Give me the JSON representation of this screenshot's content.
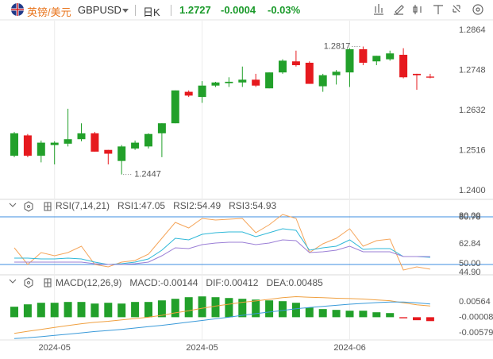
{
  "header": {
    "symbol_cn": "英镑/美元",
    "symbol": "GBPUSD",
    "period": "日K",
    "price": "1.2727",
    "change": "-0.0004",
    "change_pct": "-0.03%"
  },
  "chart_data": [
    {
      "type": "candlestick",
      "up_color": "#22a02a",
      "down_color": "#e6191e",
      "ylim": [
        1.2375,
        1.2894
      ],
      "yticks": [
        1.2864,
        1.2748,
        1.2632,
        1.2516,
        {
          "value": 1.24,
          "label": "1.2400"
        }
      ],
      "open": [
        1.2501,
        1.256,
        1.2501,
        1.2532,
        1.2536,
        1.2549,
        1.2566,
        1.2518,
        1.2486,
        1.2522,
        1.2528,
        1.2566,
        1.2595,
        1.2686,
        1.2671,
        1.2704,
        1.2711,
        1.2713,
        1.2721,
        1.2696,
        1.2742,
        1.2774,
        1.277,
        1.2702,
        1.2734,
        1.2742,
        1.2809,
        1.2774,
        1.278,
        1.2793,
        1.2738,
        1.273
      ],
      "high": [
        1.257,
        1.2564,
        1.2545,
        1.2543,
        1.2637,
        1.2595,
        1.257,
        1.2518,
        1.2532,
        1.2545,
        1.2566,
        1.2595,
        1.269,
        1.269,
        1.2717,
        1.2715,
        1.2728,
        1.2759,
        1.2738,
        1.2742,
        1.278,
        1.2805,
        1.2774,
        1.2738,
        1.2749,
        1.2812,
        1.2817,
        1.279,
        1.2805,
        1.2812,
        1.2738,
        1.2738
      ],
      "low": [
        1.2497,
        1.2497,
        1.2482,
        1.2476,
        1.2528,
        1.2543,
        1.2513,
        1.2476,
        1.2447,
        1.2518,
        1.2522,
        1.2497,
        1.2595,
        1.2671,
        1.2654,
        1.27,
        1.27,
        1.27,
        1.27,
        1.2696,
        1.2738,
        1.2759,
        1.2709,
        1.2686,
        1.2707,
        1.27,
        1.2763,
        1.2763,
        1.2776,
        1.2725,
        1.2692,
        1.2725
      ],
      "close": [
        1.2566,
        1.2501,
        1.2539,
        1.2539,
        1.2549,
        1.2566,
        1.2513,
        1.2507,
        1.2528,
        1.2539,
        1.2564,
        1.2595,
        1.269,
        1.2675,
        1.2704,
        1.2713,
        1.2715,
        1.2721,
        1.2704,
        1.2742,
        1.2776,
        1.2763,
        1.2709,
        1.2734,
        1.2744,
        1.2809,
        1.277,
        1.279,
        1.2797,
        1.2728,
        1.2734,
        1.2727
      ],
      "annotations": [
        {
          "index": 26,
          "value": 1.2817
        },
        {
          "index": 8,
          "value": 1.2447
        }
      ]
    },
    {
      "type": "line",
      "title": "RSI(7,14,21)",
      "ylim": [
        45,
        88.5
      ],
      "yticks": [
        80.78,
        62.84,
        {
          "value": 44.9,
          "label": "44.90"
        }
      ],
      "levels": [
        {
          "value": 80,
          "label": "80.00"
        },
        {
          "value": 50,
          "label": "50.00"
        }
      ],
      "level_color": "#3d8ee0",
      "series": [
        {
          "name": "RSI1:47.05",
          "color": "#f5a55a",
          "values": [
            60.5,
            50,
            57.5,
            55.5,
            57.5,
            61.5,
            50,
            48.5,
            51.5,
            52.5,
            56.5,
            66.5,
            76.5,
            73,
            79,
            78,
            78.5,
            79,
            70,
            75,
            81.5,
            79,
            57.5,
            63,
            66.5,
            72.5,
            61.5,
            65,
            66,
            46.5,
            48.5,
            47.05
          ]
        },
        {
          "name": "RSI2:54.49",
          "color": "#2fb8d8",
          "values": [
            54,
            54,
            53.5,
            53.5,
            54,
            53.5,
            51.5,
            50,
            50.5,
            51.5,
            53.5,
            59,
            66.5,
            65.5,
            69,
            70,
            70.5,
            70.5,
            67.5,
            70,
            72.5,
            71.5,
            59,
            60.5,
            61.5,
            65.5,
            59.5,
            60,
            60,
            55,
            55,
            54.49
          ]
        },
        {
          "name": "RSI3:54.93",
          "color": "#9b7fd6",
          "values": [
            51.5,
            51.5,
            51.5,
            51.5,
            51.5,
            51.5,
            50.5,
            50,
            50,
            50.5,
            51.5,
            55.5,
            60.5,
            60,
            62.5,
            63.5,
            64,
            64,
            62.5,
            63.5,
            65.5,
            65,
            57.5,
            58,
            59,
            61.5,
            58,
            58,
            58,
            55,
            55,
            54.93
          ]
        }
      ]
    },
    {
      "type": "macd",
      "title": "MACD(12,26,9)",
      "ylim": [
        -0.0084,
        0.0139
      ],
      "yticks": [
        0.00564,
        -8e-05,
        -0.00579
      ],
      "up_color": "#22a02a",
      "down_color": "#e6191e",
      "histogram": {
        "name": "MACD:-0.00144",
        "color": "#9966cc",
        "values": [
          0.00387,
          0.00475,
          0.00533,
          0.00533,
          0.00563,
          0.00563,
          0.00504,
          0.00533,
          0.00504,
          0.00563,
          0.00563,
          0.00621,
          0.0068,
          0.00739,
          0.00768,
          0.00739,
          0.00709,
          0.0068,
          0.00651,
          0.00621,
          0.00592,
          0.00533,
          0.00358,
          0.003,
          0.0027,
          0.0024,
          0.0024,
          0.00182,
          0.00152,
          -0.0004,
          -0.00111,
          -0.00144
        ]
      },
      "series": [
        {
          "name": "DIF:0.00412",
          "color": "#f0a040",
          "values": [
            -0.006,
            -0.0052,
            -0.0045,
            -0.0038,
            -0.0031,
            -0.0024,
            -0.0019,
            -0.0015,
            -0.001,
            -0.0005,
            0,
            0.0007,
            0.0016,
            0.0024,
            0.0033,
            0.0041,
            0.0048,
            0.0055,
            0.006,
            0.0066,
            0.0072,
            0.0076,
            0.0074,
            0.0072,
            0.007,
            0.0069,
            0.0067,
            0.0064,
            0.0061,
            0.0053,
            0.0046,
            0.00412
          ]
        },
        {
          "name": "DEA:0.00485",
          "color": "#3a9ad9",
          "values": [
            -0.0079,
            -0.0076,
            -0.0072,
            -0.0067,
            -0.0063,
            -0.0058,
            -0.0053,
            -0.0049,
            -0.0045,
            -0.004,
            -0.0035,
            -0.003,
            -0.0024,
            -0.0018,
            -0.0012,
            -0.0006,
            0,
            0.0007,
            0.0013,
            0.0019,
            0.0025,
            0.0031,
            0.0036,
            0.004,
            0.0044,
            0.0048,
            0.0051,
            0.0054,
            0.0056,
            0.0056,
            0.0053,
            0.00485
          ]
        }
      ],
      "x_labels": [
        {
          "index": 3,
          "label": "2024-05"
        },
        {
          "index": 14,
          "label": "2024-05"
        },
        {
          "index": 25,
          "label": "2024-06"
        }
      ]
    }
  ]
}
